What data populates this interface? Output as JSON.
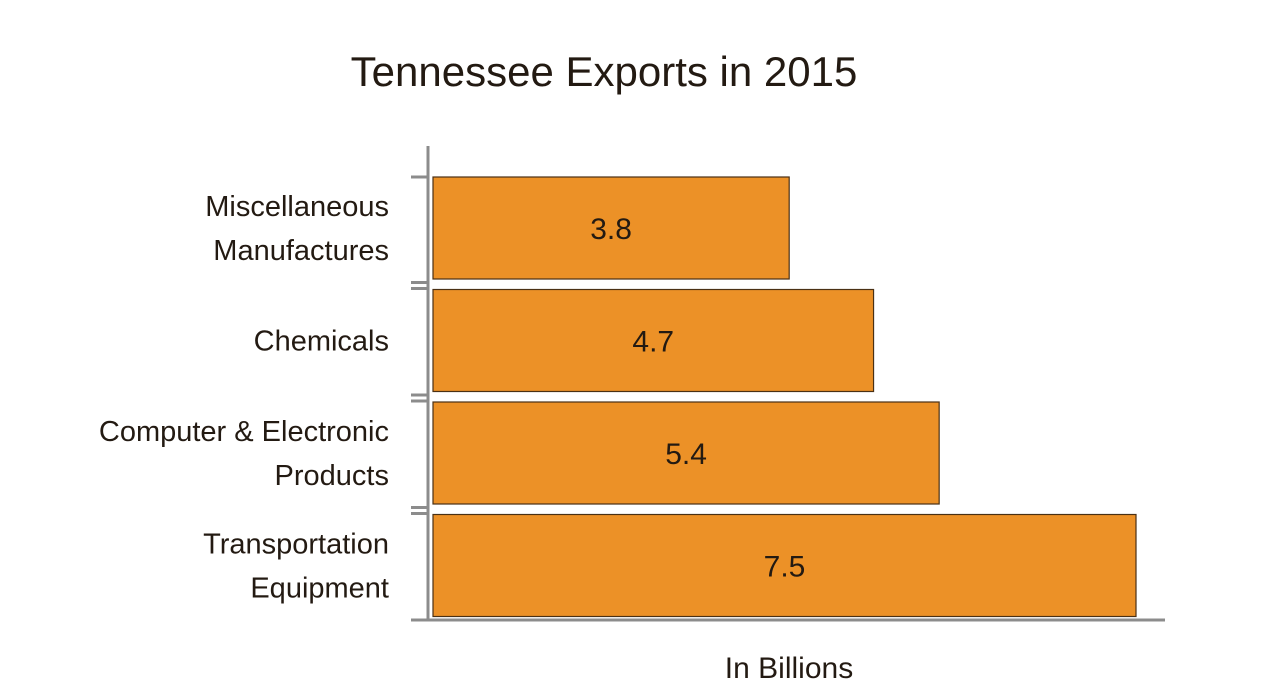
{
  "chart_data": {
    "type": "bar",
    "orientation": "horizontal",
    "title": "Tennessee Exports in 2015",
    "xlabel": "In Billions",
    "ylabel": "",
    "categories": [
      [
        "Miscellaneous",
        "Manufactures"
      ],
      [
        "Chemicals"
      ],
      [
        "Computer & Electronic",
        "Products"
      ],
      [
        "Transportation",
        "Equipment"
      ]
    ],
    "values": [
      3.8,
      4.7,
      5.4,
      7.5
    ],
    "value_labels": [
      "3.8",
      "4.7",
      "5.4",
      "7.5"
    ],
    "xlim": [
      0,
      7.5
    ],
    "grid": false,
    "legend": "none",
    "colors": {
      "bar_fill": "#EC9127",
      "bar_stroke": "#4a3014",
      "axis": "#8c8c8c",
      "text": "#231a12"
    }
  }
}
